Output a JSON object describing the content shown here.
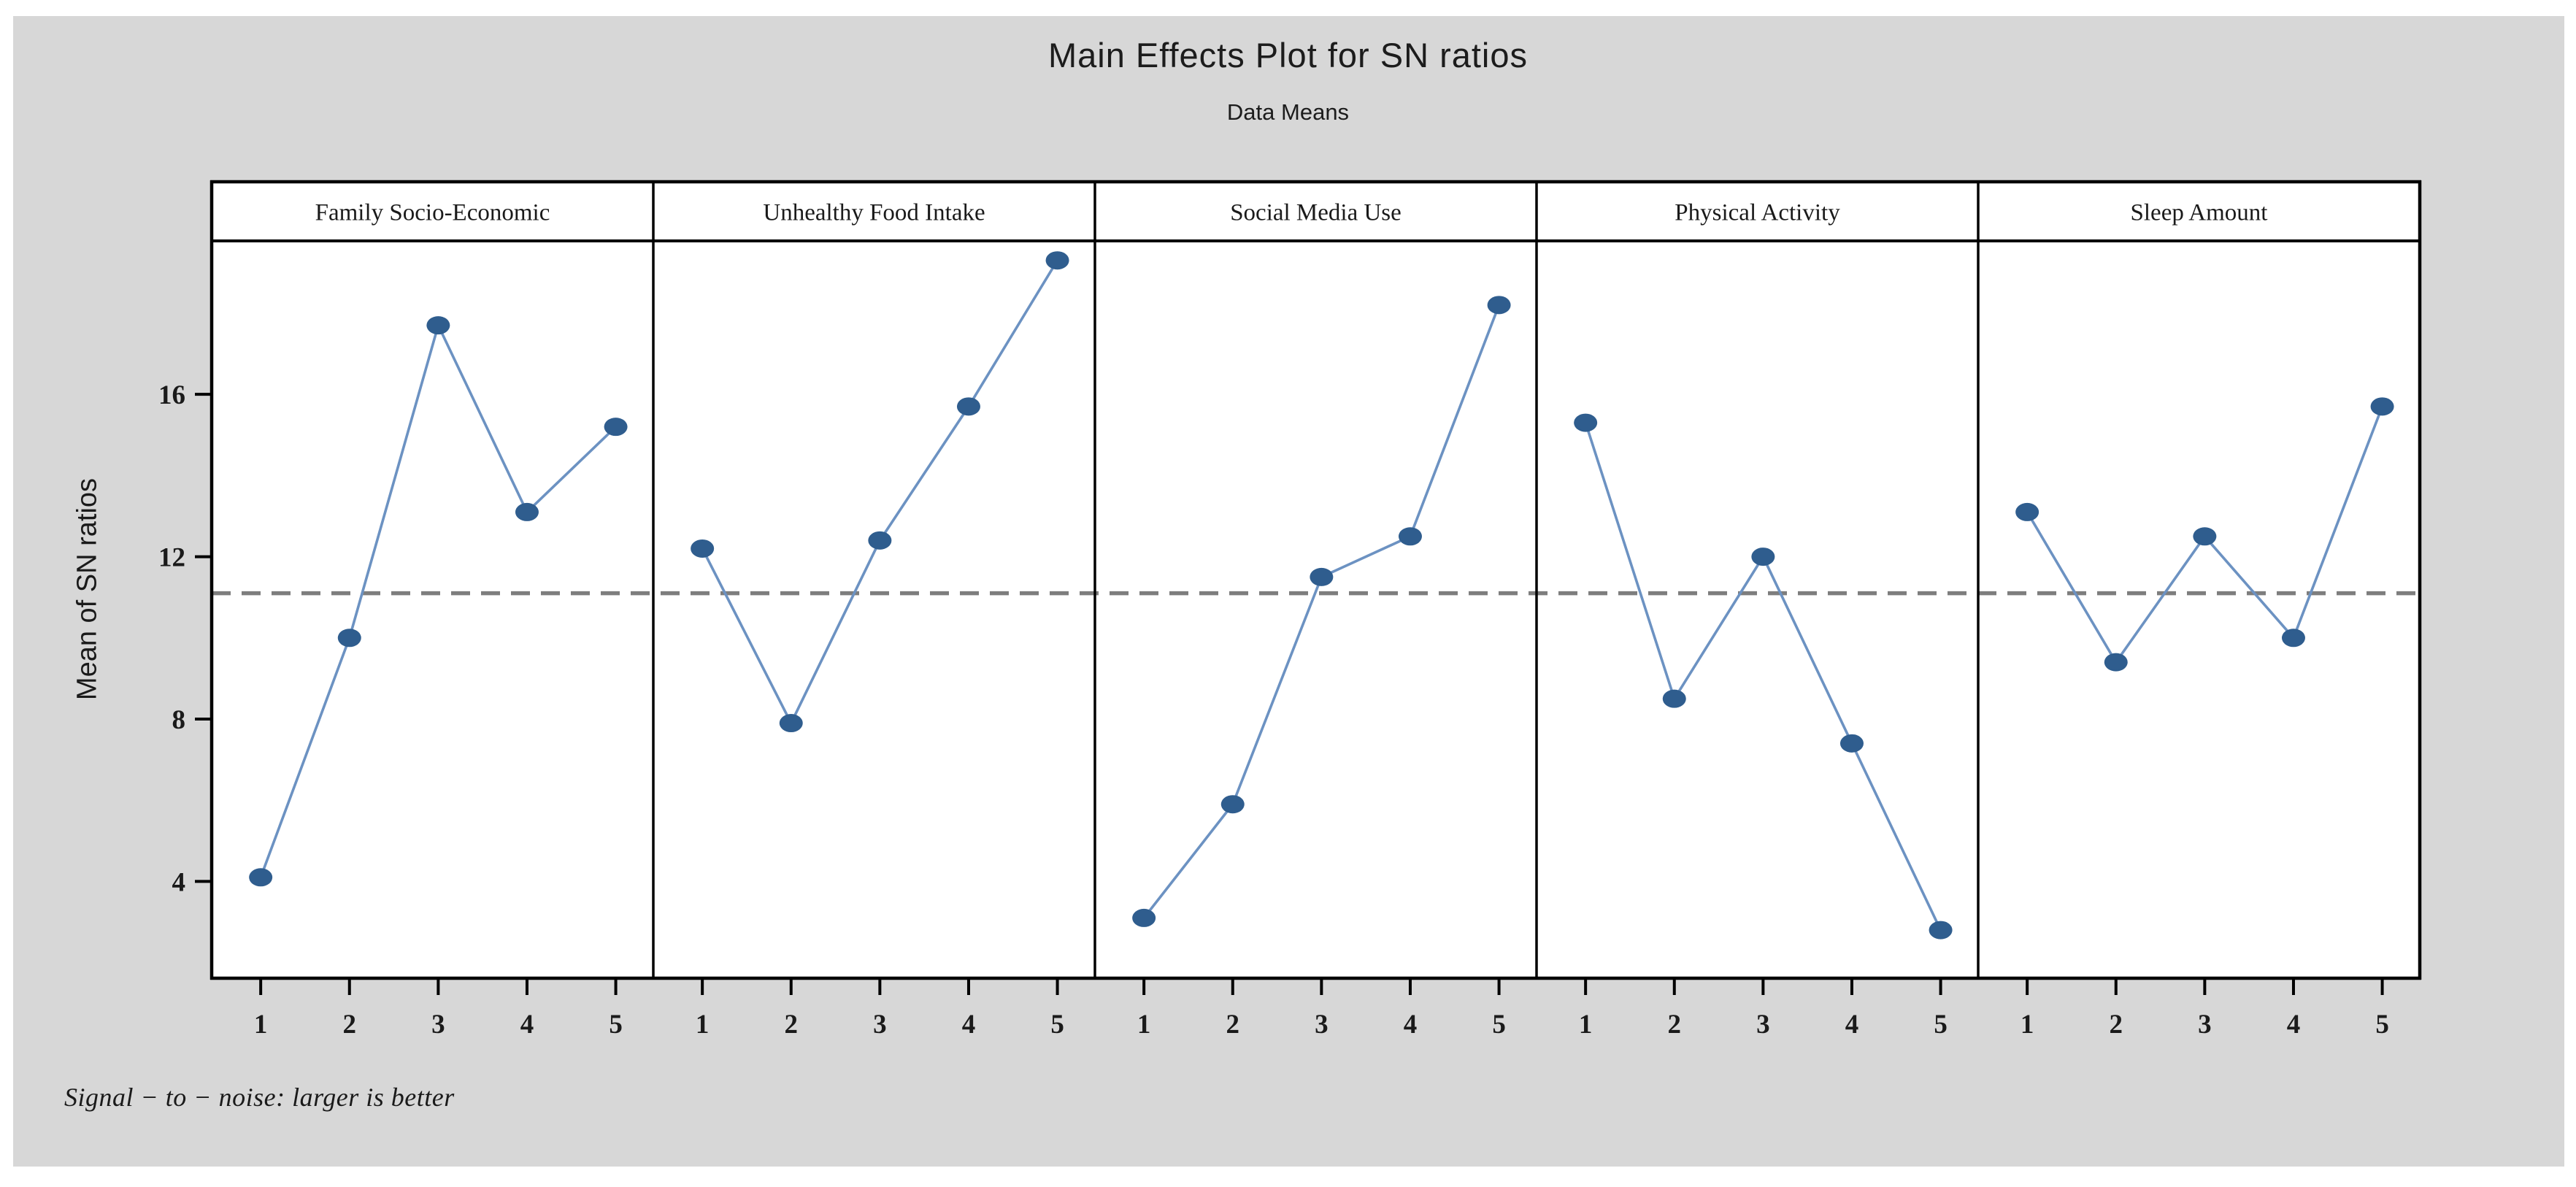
{
  "window": {
    "background": "#FFFFFF",
    "canvas_background": "#D7D7D7"
  },
  "chart_data": {
    "type": "line",
    "title": "Main Effects Plot for SN ratios",
    "subtitle": "Data Means",
    "ylabel": "Mean of SN ratios",
    "footnote": "Signal − to − noise: larger is better",
    "x_ticks": [
      "1",
      "2",
      "3",
      "4",
      "5"
    ],
    "y_ticks": [
      4,
      8,
      12,
      16
    ],
    "ylim": [
      1.6,
      19.8
    ],
    "reference_line": 11.1,
    "reference_line_style": "dashed",
    "grid": false,
    "legend": false,
    "panels": [
      {
        "label": "Family Socio-Economic",
        "values": [
          4.1,
          10.0,
          17.7,
          13.1,
          15.2
        ]
      },
      {
        "label": "Unhealthy Food Intake",
        "values": [
          12.2,
          7.9,
          12.4,
          15.7,
          19.3
        ]
      },
      {
        "label": "Social Media Use",
        "values": [
          3.1,
          5.9,
          11.5,
          12.5,
          18.2
        ]
      },
      {
        "label": "Physical Activity",
        "values": [
          15.3,
          8.5,
          12.0,
          7.4,
          2.8
        ]
      },
      {
        "label": "Sleep Amount",
        "values": [
          13.1,
          9.4,
          12.5,
          10.0,
          15.7
        ]
      }
    ],
    "colors": {
      "line": "#6C92C2",
      "marker": "#2F5D8E",
      "reference_line": "#7E7E7E",
      "frame": "#000000",
      "plot_background": "#FFFFFF",
      "text": "#1A1A1A"
    }
  }
}
